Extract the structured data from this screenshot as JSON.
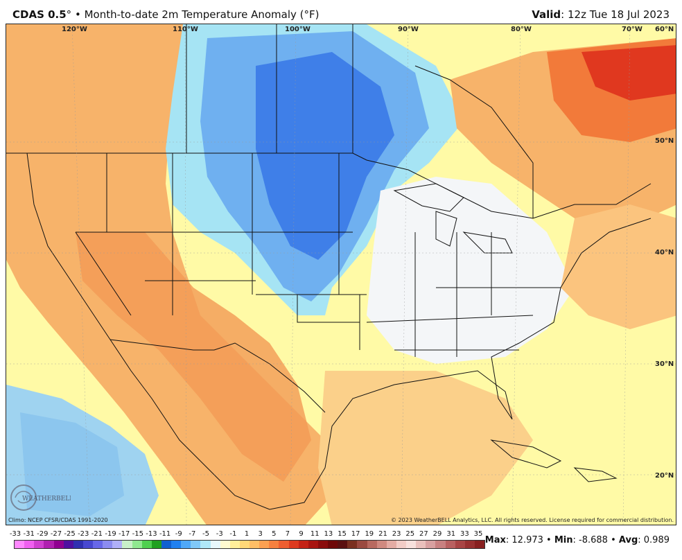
{
  "header": {
    "model": "CDAS 0.5",
    "degree": "°",
    "bullet": "•",
    "product": "Month-to-date 2m Temperature Anomaly (°F)",
    "valid_label": "Valid",
    "valid_time": ": 12z Tue 18 Jul 2023"
  },
  "map": {
    "lon_labels": [
      "120°W",
      "110°W",
      "100°W",
      "90°W",
      "80°W",
      "70°W"
    ],
    "lat_labels": [
      "60°N",
      "50°N",
      "40°N",
      "30°N",
      "20°N"
    ],
    "logo_text": "WEATHERBELL",
    "colors": {
      "land_fill": "#f4f4f4",
      "ocean": "#fffaa6",
      "warm": "#f7b36a",
      "hot": "#f27a3a",
      "very_hot": "#e0381f",
      "cool": "#a6e4f4",
      "cold": "#6fb0f0",
      "very_cold": "#3f7fe8",
      "border": "#111111"
    }
  },
  "credits": {
    "left": "Climo: NCEP CFSR/CDAS 1991-2020",
    "right": "© 2023 WeatherBELL Analytics, LLC. All rights reserved. License required for commercial distribution."
  },
  "colorbar": {
    "ticks": [
      "-33",
      "-31",
      "-29",
      "-27",
      "-25",
      "-23",
      "-21",
      "-19",
      "-17",
      "-15",
      "-13",
      "-11",
      "-9",
      "-7",
      "-5",
      "-3",
      "-1",
      "1",
      "3",
      "5",
      "7",
      "9",
      "11",
      "13",
      "15",
      "17",
      "19",
      "21",
      "23",
      "25",
      "27",
      "29",
      "31",
      "33",
      "35"
    ],
    "colors": [
      "#ff88ff",
      "#f060f0",
      "#d040d0",
      "#b020b0",
      "#900090",
      "#5010a0",
      "#3030b0",
      "#4848d0",
      "#6868e8",
      "#8c8cf0",
      "#b0b0f8",
      "#c8f0c8",
      "#90e890",
      "#50d050",
      "#20a020",
      "#1060d0",
      "#2080f0",
      "#50a8f8",
      "#80c8f8",
      "#b0e8f8",
      "#e8f8fc",
      "#fffad0",
      "#ffef9a",
      "#ffd878",
      "#ffbe66",
      "#fba052",
      "#f6803f",
      "#ee5e30",
      "#dd3a1f",
      "#c42216",
      "#a81410",
      "#8a0c0c",
      "#6e0808",
      "#5a1010",
      "#7a3020",
      "#9a4a40",
      "#b86a60",
      "#d08a80",
      "#e4aca4",
      "#f2ccc6",
      "#f8e0dc",
      "#eac0bc",
      "#d8a0a0",
      "#c88080",
      "#b86060",
      "#a84444",
      "#983030",
      "#882020"
    ]
  },
  "stats": {
    "max_label": "Max",
    "max_value": ": 12.973",
    "min_label": "Min",
    "min_value": ": -8.688",
    "avg_label": "Avg",
    "avg_value": ": 0.989",
    "sep": "•"
  }
}
